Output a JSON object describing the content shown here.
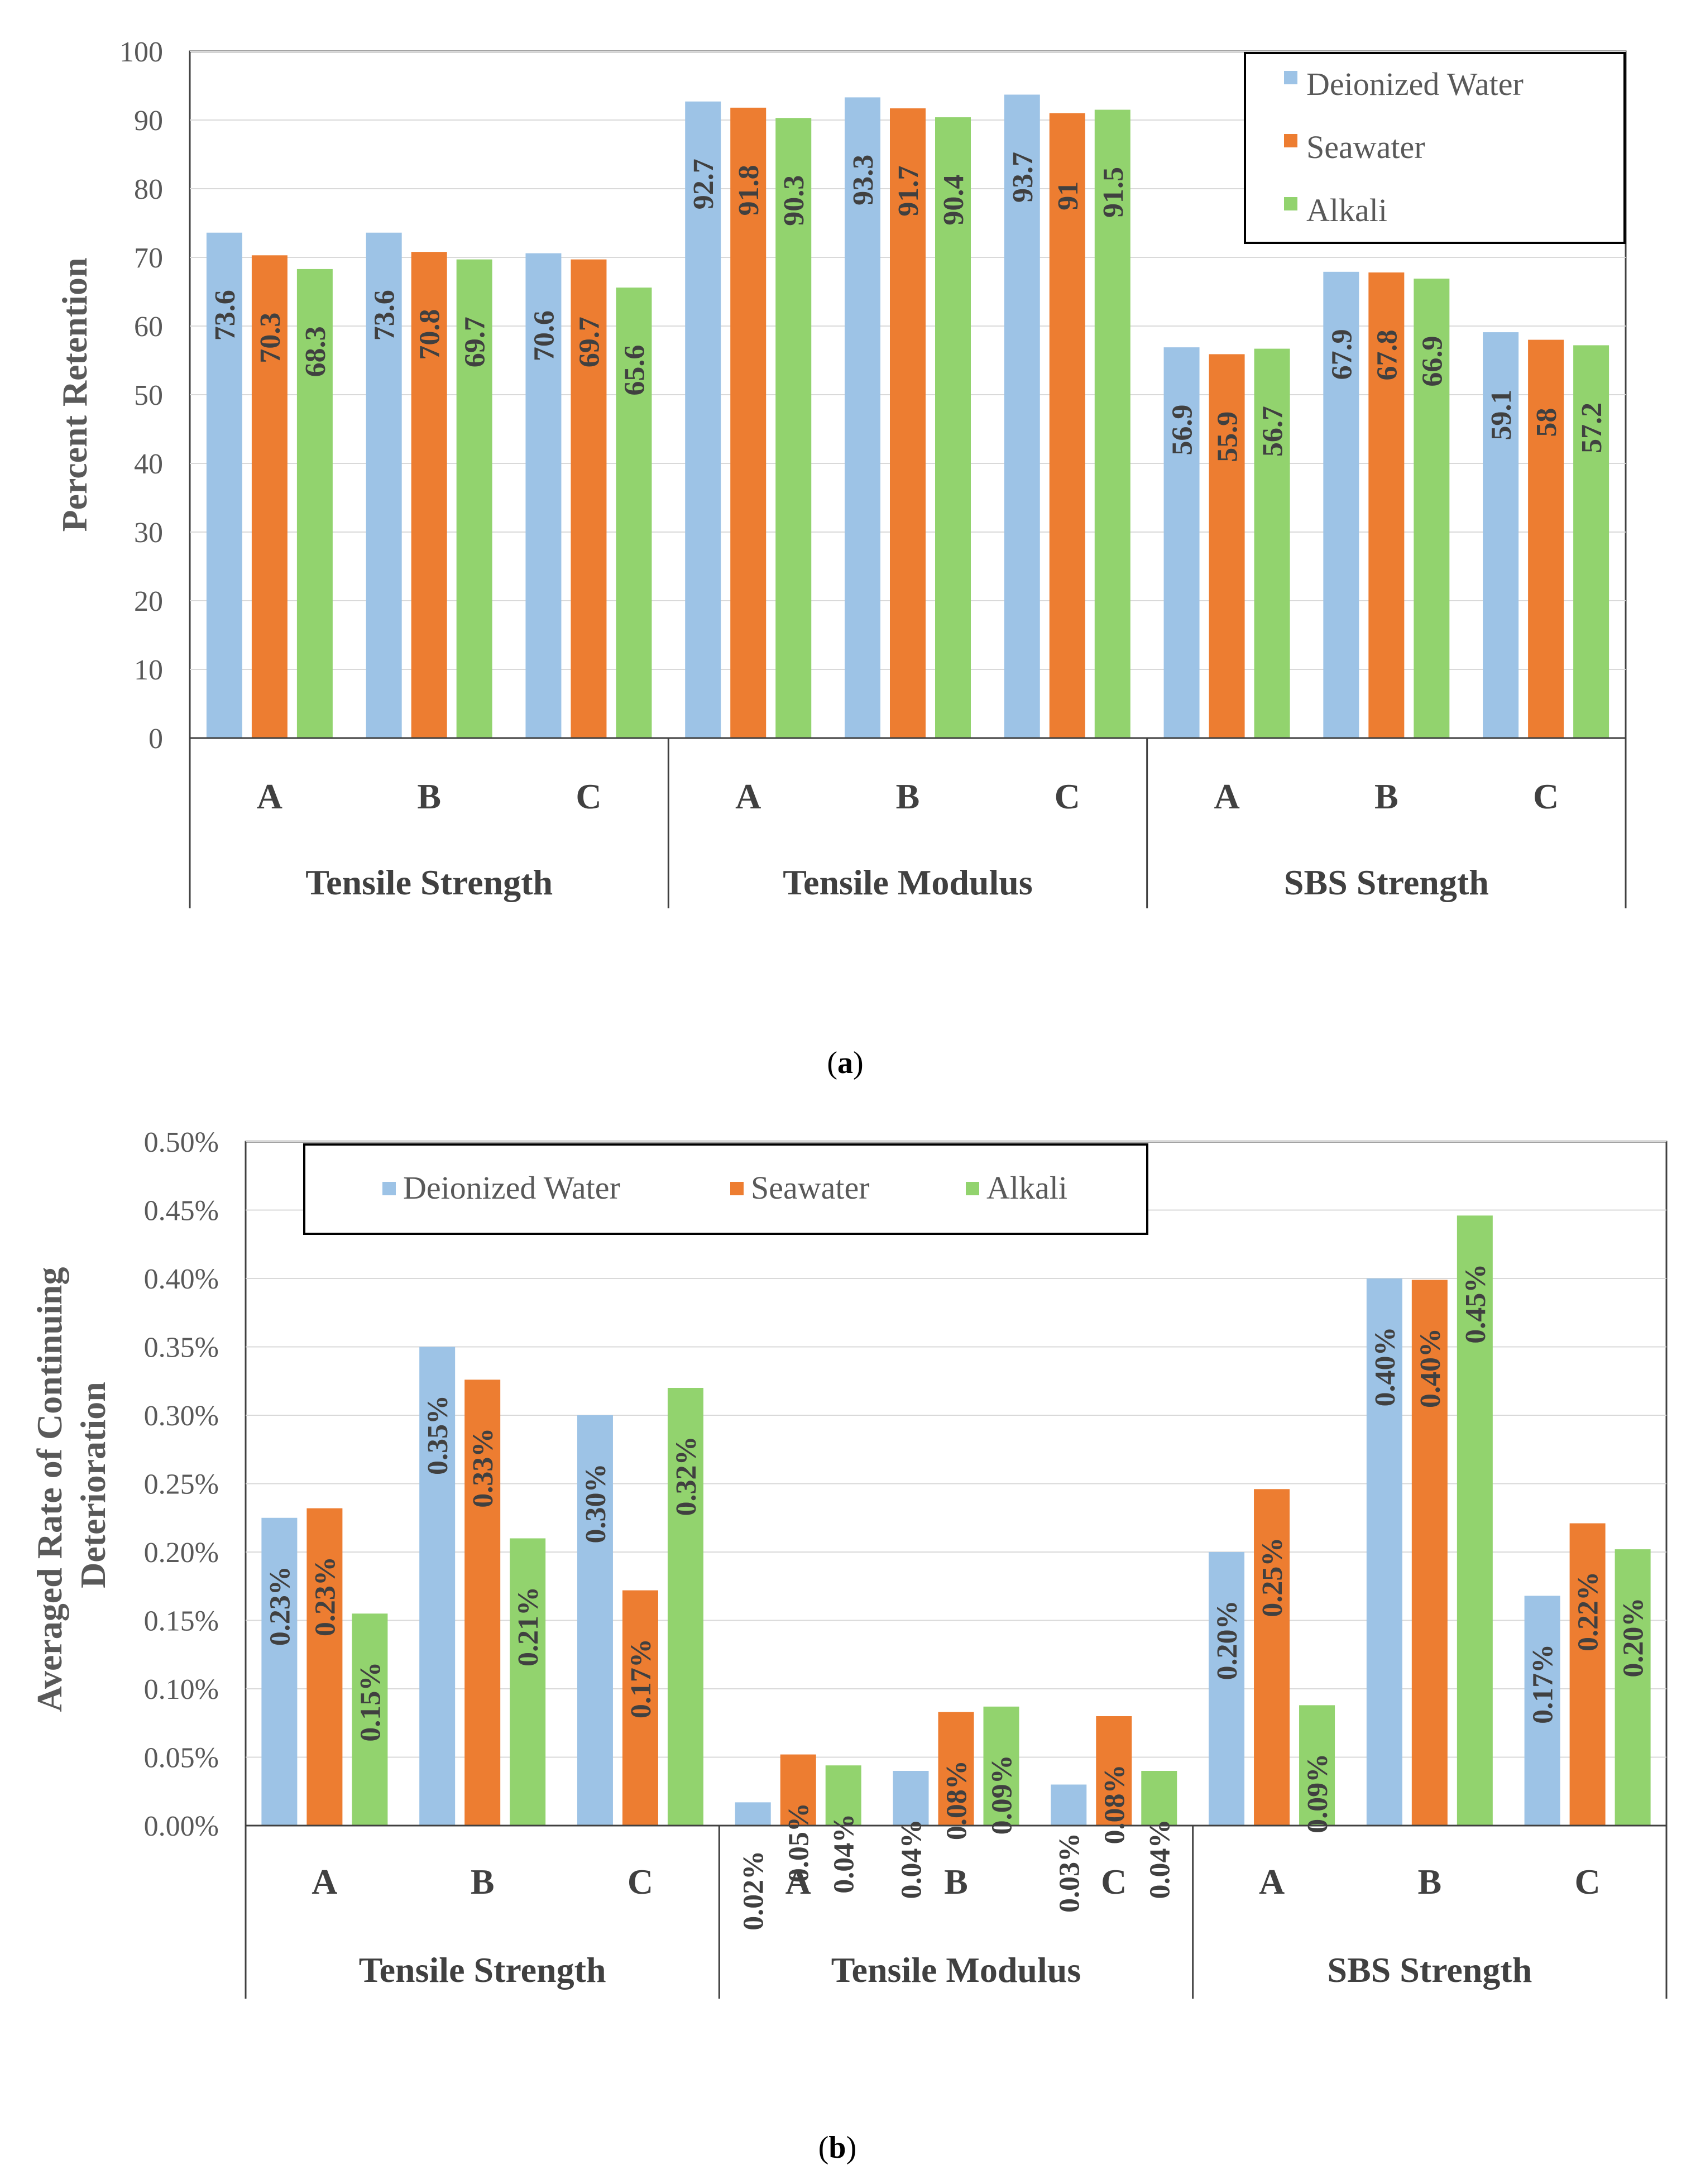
{
  "chart_data": [
    {
      "type": "bar",
      "panel_label": "a",
      "title": "",
      "ylabel": "Percent Retention",
      "xlabel": "",
      "ylim": [
        0,
        100
      ],
      "yticks": [
        "0",
        "10",
        "20",
        "30",
        "40",
        "50",
        "60",
        "70",
        "80",
        "90",
        "100"
      ],
      "grid": true,
      "legend_position": "top-right",
      "groups": [
        "Tensile Strength",
        "Tensile Modulus",
        "SBS Strength"
      ],
      "categories": [
        "A",
        "B",
        "C",
        "A",
        "B",
        "C",
        "A",
        "B",
        "C"
      ],
      "series": [
        {
          "name": "Deionized Water",
          "color": "#9DC3E6",
          "values": [
            73.6,
            73.6,
            70.6,
            92.7,
            93.3,
            93.7,
            56.9,
            67.9,
            59.1
          ],
          "labels": [
            "73.6",
            "73.6",
            "70.6",
            "92.7",
            "93.3",
            "93.7",
            "56.9",
            "67.9",
            "59.1"
          ]
        },
        {
          "name": "Seawater",
          "color": "#ED7D31",
          "values": [
            70.3,
            70.8,
            69.7,
            91.8,
            91.7,
            91,
            55.9,
            67.8,
            58
          ],
          "labels": [
            "70.3",
            "70.8",
            "69.7",
            "91.8",
            "91.7",
            "91",
            "55.9",
            "67.8",
            "58"
          ]
        },
        {
          "name": "Alkali",
          "color": "#92D36E",
          "values": [
            68.3,
            69.7,
            65.6,
            90.3,
            90.4,
            91.5,
            56.7,
            66.9,
            57.2
          ],
          "labels": [
            "68.3",
            "69.7",
            "65.6",
            "90.3",
            "90.4",
            "91.5",
            "56.7",
            "66.9",
            "57.2"
          ]
        }
      ]
    },
    {
      "type": "bar",
      "panel_label": "b",
      "title": "",
      "ylabel": "Averaged Rate of Continuing Deterioration",
      "ylabel_lines": [
        "Averaged Rate of Continuing",
        "Deterioration"
      ],
      "xlabel": "",
      "ylim": [
        0,
        0.5
      ],
      "yticks": [
        "0.00%",
        "0.05%",
        "0.10%",
        "0.15%",
        "0.20%",
        "0.25%",
        "0.30%",
        "0.35%",
        "0.40%",
        "0.45%",
        "0.50%"
      ],
      "grid": true,
      "legend_position": "top-left",
      "groups": [
        "Tensile Strength",
        "Tensile Modulus",
        "SBS Strength"
      ],
      "categories": [
        "A",
        "B",
        "C",
        "A",
        "B",
        "C",
        "A",
        "B",
        "C"
      ],
      "series": [
        {
          "name": "Deionized Water",
          "color": "#9DC3E6",
          "values": [
            0.225,
            0.35,
            0.3,
            0.017,
            0.04,
            0.03,
            0.2,
            0.4,
            0.168
          ],
          "labels": [
            "0.23%",
            "0.35%",
            "0.30%",
            "0.02%",
            "0.04%",
            "0.03%",
            "0.20%",
            "0.40%",
            "0.17%"
          ]
        },
        {
          "name": "Seawater",
          "color": "#ED7D31",
          "values": [
            0.232,
            0.326,
            0.172,
            0.052,
            0.083,
            0.08,
            0.246,
            0.399,
            0.221
          ],
          "labels": [
            "0.23%",
            "0.33%",
            "0.17%",
            "0.05%",
            "0.08%",
            "0.08%",
            "0.25%",
            "0.40%",
            "0.22%"
          ]
        },
        {
          "name": "Alkali",
          "color": "#92D36E",
          "values": [
            0.155,
            0.21,
            0.32,
            0.044,
            0.087,
            0.04,
            0.088,
            0.446,
            0.202
          ],
          "labels": [
            "0.15%",
            "0.21%",
            "0.32%",
            "0.04%",
            "0.09%",
            "0.04%",
            "0.09%",
            "0.45%",
            "0.20%"
          ]
        }
      ]
    }
  ]
}
